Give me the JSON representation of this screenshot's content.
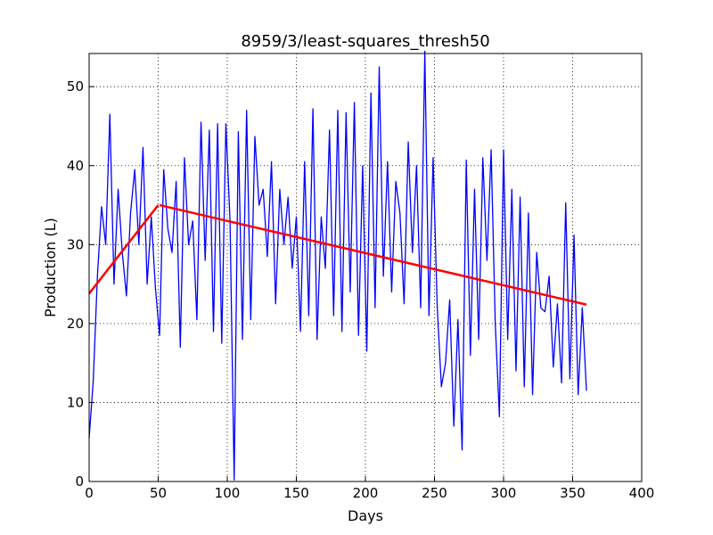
{
  "chart_data": {
    "type": "line",
    "title": "8959/3/least-squares_thresh50",
    "x_label": "Days",
    "y_label": "Production (L)",
    "xlim": [
      0,
      400
    ],
    "ylim": [
      0,
      54.2
    ],
    "xticks": [
      0,
      50,
      100,
      150,
      200,
      250,
      300,
      350,
      400
    ],
    "yticks": [
      0,
      10,
      20,
      30,
      40,
      50
    ],
    "grid": true,
    "series": [
      {
        "color": "#0000ff",
        "width": 1.3,
        "x": [
          0,
          3,
          6,
          9,
          12,
          15,
          18,
          21,
          24,
          27,
          30,
          33,
          36,
          39,
          42,
          45,
          48,
          51,
          54,
          57,
          60,
          63,
          66,
          69,
          72,
          75,
          78,
          81,
          84,
          87,
          90,
          93,
          96,
          99,
          102,
          105,
          108,
          111,
          114,
          117,
          120,
          123,
          126,
          129,
          132,
          135,
          138,
          141,
          144,
          147,
          150,
          153,
          156,
          159,
          162,
          165,
          168,
          171,
          174,
          177,
          180,
          183,
          186,
          189,
          192,
          195,
          198,
          201,
          204,
          207,
          210,
          213,
          216,
          219,
          222,
          225,
          228,
          231,
          234,
          237,
          240,
          243,
          246,
          249,
          252,
          255,
          258,
          261,
          264,
          267,
          270,
          273,
          276,
          279,
          282,
          285,
          288,
          291,
          294,
          297,
          300,
          303,
          306,
          309,
          312,
          315,
          318,
          321,
          324,
          327,
          330,
          333,
          336,
          339,
          342,
          345,
          348,
          351,
          354,
          357,
          360
        ],
        "values": [
          5.5,
          12.8,
          26,
          34.8,
          30,
          46.5,
          25,
          37,
          29,
          23.5,
          34,
          39.5,
          30,
          42.3,
          25,
          33.5,
          24.5,
          18.5,
          39.5,
          32,
          29,
          38,
          17,
          41,
          30,
          33,
          20.5,
          45.5,
          28,
          44.5,
          19,
          45.3,
          17.5,
          45.3,
          33,
          0.2,
          44.3,
          18,
          47,
          20.5,
          43.7,
          35,
          37,
          28.5,
          40.5,
          22.5,
          37,
          30,
          36,
          27,
          33.5,
          19,
          40.5,
          21,
          47.2,
          18,
          33.5,
          27,
          44.5,
          21,
          47,
          19,
          46.7,
          24,
          48,
          18.5,
          40,
          16.5,
          49.2,
          22,
          52.5,
          26,
          40.5,
          24,
          38,
          34,
          22.5,
          43,
          29,
          40,
          22,
          54.5,
          21,
          41,
          22,
          12,
          15,
          23,
          7,
          20.5,
          4,
          40.7,
          16,
          37,
          18,
          41,
          28,
          42,
          20,
          8.2,
          42,
          18,
          37,
          14,
          36,
          12,
          34,
          11,
          29,
          22,
          21.5,
          26,
          14.5,
          22.5,
          12.5,
          35.3,
          13,
          31.2,
          11,
          22,
          11.5
        ]
      },
      {
        "color": "#ff0000",
        "width": 2.5,
        "x": [
          0,
          50
        ],
        "values": [
          23.8,
          35
        ]
      },
      {
        "color": "#ff0000",
        "width": 2.5,
        "x": [
          51,
          360
        ],
        "values": [
          35,
          22.4
        ]
      }
    ]
  }
}
